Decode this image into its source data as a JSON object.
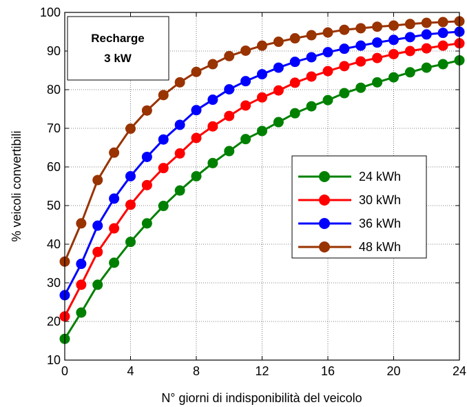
{
  "chart_data": {
    "type": "line",
    "xlabel": "N° giorni di indisponibilità del veicolo",
    "ylabel": "%  veicoli convertibili",
    "xlim": [
      0,
      24
    ],
    "ylim": [
      10,
      100
    ],
    "xticks": [
      "0",
      "4",
      "8",
      "12",
      "16",
      "20",
      "24"
    ],
    "yticks": [
      "10",
      "20",
      "30",
      "40",
      "50",
      "60",
      "70",
      "80",
      "90",
      "100"
    ],
    "grid": true,
    "legend_position": "center-right",
    "annotation": {
      "line1": "Recharge",
      "line2": "3 kW"
    },
    "x": [
      0,
      1,
      2,
      3,
      4,
      5,
      6,
      7,
      8,
      9,
      10,
      11,
      12,
      13,
      14,
      15,
      16,
      17,
      18,
      19,
      20,
      21,
      22,
      23,
      24
    ],
    "series": [
      {
        "name": "24 kWh",
        "color": "#008000",
        "values": [
          15.5,
          22.3,
          29.5,
          35.2,
          40.6,
          45.4,
          49.9,
          53.9,
          57.6,
          61.0,
          64.1,
          67.2,
          69.3,
          71.6,
          73.9,
          75.7,
          77.3,
          79.1,
          80.5,
          81.9,
          83.2,
          84.5,
          85.7,
          86.6,
          87.6
        ]
      },
      {
        "name": "30 kWh",
        "color": "#ff0000",
        "values": [
          21.3,
          29.5,
          38.0,
          44.1,
          50.2,
          55.3,
          59.7,
          63.5,
          67.5,
          70.5,
          73.2,
          75.9,
          78.0,
          79.8,
          81.8,
          83.4,
          84.8,
          86.1,
          87.3,
          88.2,
          89.2,
          90.0,
          90.7,
          91.4,
          92.0
        ]
      },
      {
        "name": "36 kWh",
        "color": "#0000ff",
        "values": [
          26.8,
          34.9,
          44.8,
          51.8,
          57.6,
          62.6,
          67.1,
          70.9,
          74.7,
          77.4,
          80.1,
          82.2,
          84.0,
          85.7,
          87.2,
          88.4,
          89.7,
          90.6,
          91.4,
          92.2,
          92.9,
          93.6,
          94.3,
          94.7,
          95.0
        ]
      },
      {
        "name": "48 kWh",
        "color": "#993300",
        "values": [
          35.5,
          45.4,
          56.6,
          63.7,
          69.9,
          74.6,
          78.6,
          81.9,
          84.6,
          86.6,
          88.7,
          90.1,
          91.4,
          92.4,
          93.3,
          94.1,
          94.8,
          95.5,
          95.9,
          96.3,
          96.6,
          97.0,
          97.3,
          97.5,
          97.7
        ]
      }
    ]
  }
}
